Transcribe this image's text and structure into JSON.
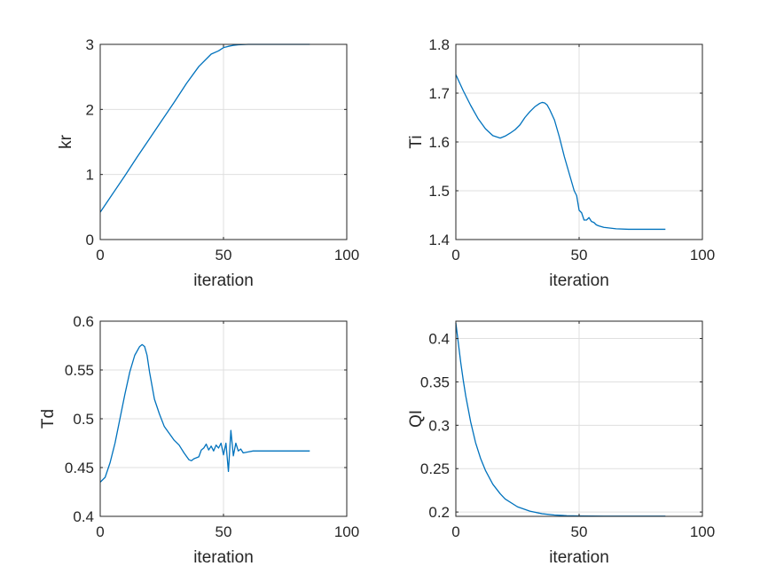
{
  "figure": {
    "line_color": "#0072BD",
    "grid": true
  },
  "chart_data": [
    {
      "type": "line",
      "xlabel": "iteration",
      "ylabel": "kr",
      "xlim": [
        0,
        100
      ],
      "ylim": [
        0,
        3
      ],
      "xticks": [
        "0",
        "50",
        "100"
      ],
      "yticks": [
        "0",
        "1",
        "2",
        "3"
      ],
      "series": [
        {
          "x": [
            0,
            5,
            10,
            15,
            20,
            25,
            30,
            35,
            40,
            45,
            48,
            50,
            52,
            54,
            56,
            58,
            60,
            65,
            70,
            75,
            80,
            85
          ],
          "y": [
            0.42,
            0.7,
            0.98,
            1.27,
            1.55,
            1.83,
            2.11,
            2.4,
            2.66,
            2.85,
            2.9,
            2.95,
            2.97,
            2.985,
            2.993,
            2.997,
            3.0,
            3.0,
            3.0,
            3.0,
            3.0,
            3.0
          ]
        }
      ]
    },
    {
      "type": "line",
      "xlabel": "iteration",
      "ylabel": "Ti",
      "xlim": [
        0,
        100
      ],
      "ylim": [
        1.4,
        1.8
      ],
      "xticks": [
        "0",
        "50",
        "100"
      ],
      "yticks": [
        "1.4",
        "1.5",
        "1.6",
        "1.7",
        "1.8"
      ],
      "series": [
        {
          "x": [
            0,
            3,
            6,
            9,
            12,
            15,
            18,
            20,
            22,
            24,
            26,
            28,
            30,
            32,
            34,
            35,
            36,
            37,
            38,
            40,
            42,
            44,
            46,
            48,
            49,
            50,
            51,
            52,
            53,
            54,
            55,
            56,
            57,
            58,
            60,
            65,
            70,
            75,
            80,
            85
          ],
          "y": [
            1.738,
            1.705,
            1.675,
            1.648,
            1.627,
            1.613,
            1.608,
            1.612,
            1.618,
            1.625,
            1.635,
            1.65,
            1.662,
            1.672,
            1.679,
            1.681,
            1.68,
            1.676,
            1.667,
            1.645,
            1.61,
            1.57,
            1.535,
            1.5,
            1.49,
            1.46,
            1.455,
            1.44,
            1.44,
            1.445,
            1.437,
            1.435,
            1.43,
            1.428,
            1.425,
            1.422,
            1.421,
            1.421,
            1.421,
            1.421
          ]
        }
      ]
    },
    {
      "type": "line",
      "xlabel": "iteration",
      "ylabel": "Td",
      "xlim": [
        0,
        100
      ],
      "ylim": [
        0.4,
        0.6
      ],
      "xticks": [
        "0",
        "50",
        "100"
      ],
      "yticks": [
        "0.4",
        "0.45",
        "0.5",
        "0.55",
        "0.6"
      ],
      "series": [
        {
          "x": [
            0,
            2,
            4,
            6,
            8,
            10,
            12,
            14,
            16,
            17,
            18,
            19,
            20,
            22,
            24,
            26,
            28,
            30,
            32,
            34,
            36,
            37,
            38,
            40,
            41,
            42,
            43,
            44,
            45,
            46,
            47,
            48,
            49,
            50,
            51,
            52,
            53,
            54,
            55,
            56,
            57,
            58,
            60,
            62,
            65,
            70,
            75,
            80,
            85
          ],
          "y": [
            0.435,
            0.44,
            0.455,
            0.475,
            0.5,
            0.525,
            0.548,
            0.565,
            0.574,
            0.576,
            0.574,
            0.565,
            0.548,
            0.52,
            0.505,
            0.492,
            0.485,
            0.478,
            0.473,
            0.465,
            0.458,
            0.457,
            0.459,
            0.461,
            0.468,
            0.47,
            0.474,
            0.468,
            0.472,
            0.467,
            0.473,
            0.47,
            0.475,
            0.463,
            0.475,
            0.446,
            0.488,
            0.462,
            0.475,
            0.467,
            0.469,
            0.465,
            0.466,
            0.467,
            0.467,
            0.467,
            0.467,
            0.467,
            0.467
          ]
        }
      ]
    },
    {
      "type": "line",
      "xlabel": "iteration",
      "ylabel": "QI",
      "xlim": [
        0,
        100
      ],
      "ylim": [
        0.195,
        0.42
      ],
      "xticks": [
        "0",
        "50",
        "100"
      ],
      "yticks": [
        "0.2",
        "0.25",
        "0.3",
        "0.35",
        "0.4"
      ],
      "series": [
        {
          "x": [
            0,
            1,
            2,
            3,
            4,
            6,
            8,
            10,
            12,
            15,
            18,
            20,
            25,
            30,
            35,
            40,
            45,
            50,
            55,
            60,
            65,
            70,
            75,
            80,
            85
          ],
          "y": [
            0.418,
            0.395,
            0.372,
            0.352,
            0.334,
            0.304,
            0.28,
            0.262,
            0.248,
            0.232,
            0.221,
            0.215,
            0.206,
            0.201,
            0.198,
            0.1965,
            0.1958,
            0.1955,
            0.1953,
            0.1952,
            0.1952,
            0.1952,
            0.1952,
            0.1952,
            0.1952
          ]
        }
      ]
    }
  ]
}
